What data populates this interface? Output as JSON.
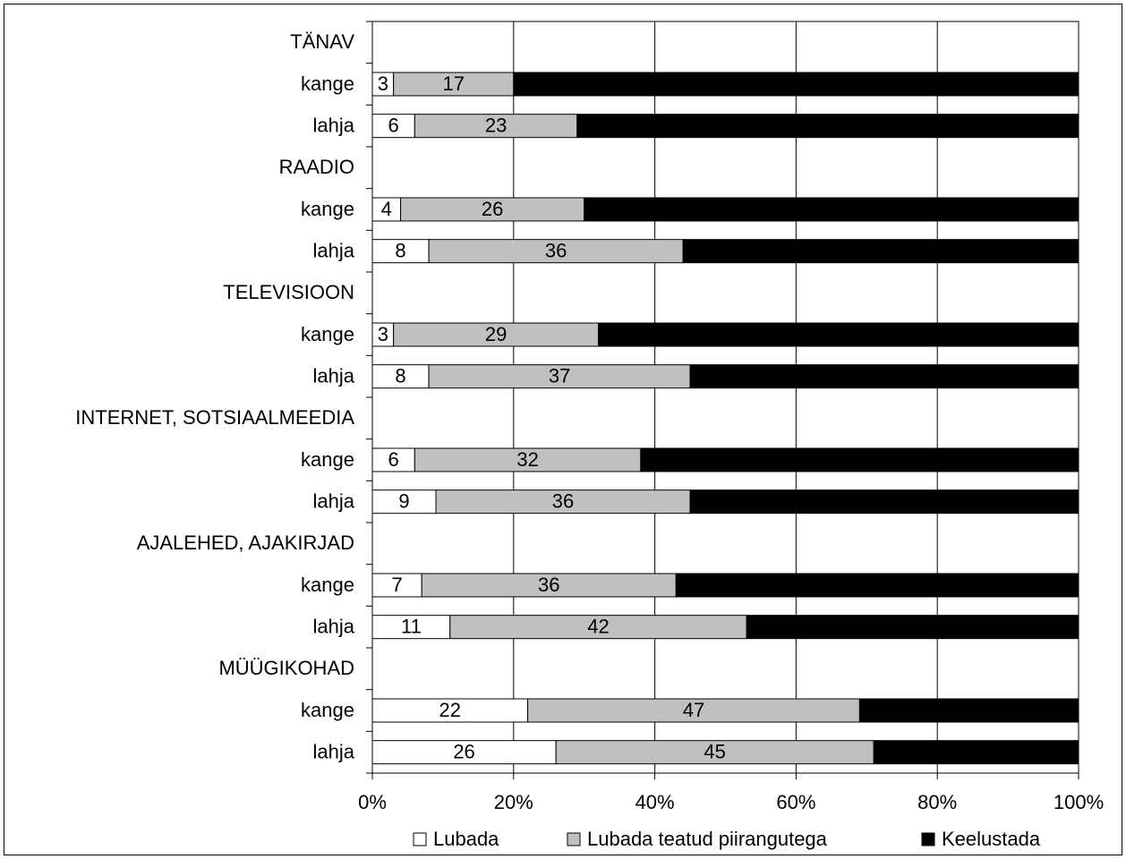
{
  "chart_data": {
    "type": "bar",
    "stacked": true,
    "orientation": "horizontal",
    "categories": [
      {
        "label": "TÄNAV",
        "header": true
      },
      {
        "label": "kange",
        "values": [
          3,
          17,
          80
        ]
      },
      {
        "label": "lahja",
        "values": [
          6,
          23,
          71
        ]
      },
      {
        "label": "RAADIO",
        "header": true
      },
      {
        "label": "kange",
        "values": [
          4,
          26,
          70
        ]
      },
      {
        "label": "lahja",
        "values": [
          8,
          36,
          56
        ]
      },
      {
        "label": "TELEVISIOON",
        "header": true
      },
      {
        "label": "kange",
        "values": [
          3,
          29,
          68
        ]
      },
      {
        "label": "lahja",
        "values": [
          8,
          37,
          55
        ]
      },
      {
        "label": "INTERNET, SOTSIAALMEEDIA",
        "header": true
      },
      {
        "label": "kange",
        "values": [
          6,
          32,
          62
        ]
      },
      {
        "label": "lahja",
        "values": [
          9,
          36,
          55
        ]
      },
      {
        "label": "AJALEHED, AJAKIRJAD",
        "header": true
      },
      {
        "label": "kange",
        "values": [
          7,
          36,
          57
        ]
      },
      {
        "label": "lahja",
        "values": [
          11,
          42,
          47
        ]
      },
      {
        "label": "MÜÜGIKOHAD",
        "header": true
      },
      {
        "label": "kange",
        "values": [
          22,
          47,
          31
        ]
      },
      {
        "label": "lahja",
        "values": [
          26,
          45,
          29
        ]
      }
    ],
    "series": [
      {
        "name": "Lubada",
        "color": "#ffffff",
        "label_color": "#000000"
      },
      {
        "name": "Lubada teatud piirangutega",
        "color": "#c0c0c0",
        "label_color": "#000000"
      },
      {
        "name": "Keelustada",
        "color": "#000000",
        "label_color": "#ffffff"
      }
    ],
    "xticks": [
      "0%",
      "20%",
      "40%",
      "60%",
      "80%",
      "100%"
    ],
    "xlim": [
      0,
      100
    ],
    "grid": true,
    "legend_position": "bottom"
  }
}
